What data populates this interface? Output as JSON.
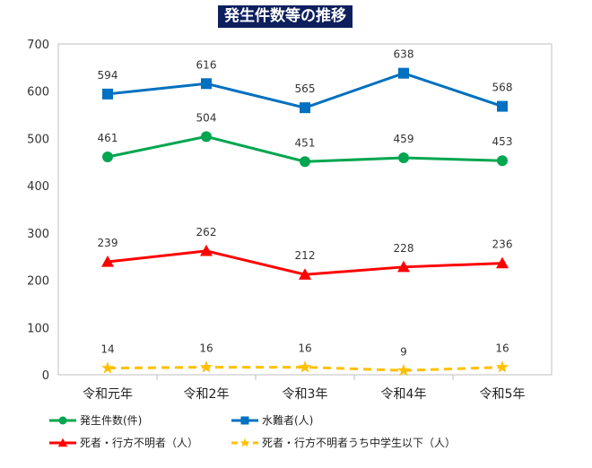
{
  "chart_data": {
    "type": "line",
    "title": "発生件数等の推移",
    "categories": [
      "令和元年",
      "令和2年",
      "令和3年",
      "令和4年",
      "令和5年"
    ],
    "ylim": [
      0,
      700
    ],
    "yticks": [
      0,
      100,
      200,
      300,
      400,
      500,
      600,
      700
    ],
    "grid": false,
    "legend_position": "bottom",
    "series": [
      {
        "name": "発生件数(件)",
        "values": [
          461,
          504,
          451,
          459,
          453
        ],
        "color": "#00a650",
        "marker": "circle",
        "dash": false
      },
      {
        "name": "水難者(人)",
        "values": [
          594,
          616,
          565,
          638,
          568
        ],
        "color": "#0070c0",
        "marker": "square",
        "dash": false
      },
      {
        "name": "死者・行方不明者（人）",
        "values": [
          239,
          262,
          212,
          228,
          236
        ],
        "color": "#ff0000",
        "marker": "triangle",
        "dash": false
      },
      {
        "name": "死者・行方不明者うち中学生以下（人）",
        "values": [
          14,
          16,
          16,
          9,
          16
        ],
        "color": "#ffc000",
        "marker": "star",
        "dash": true
      }
    ]
  }
}
